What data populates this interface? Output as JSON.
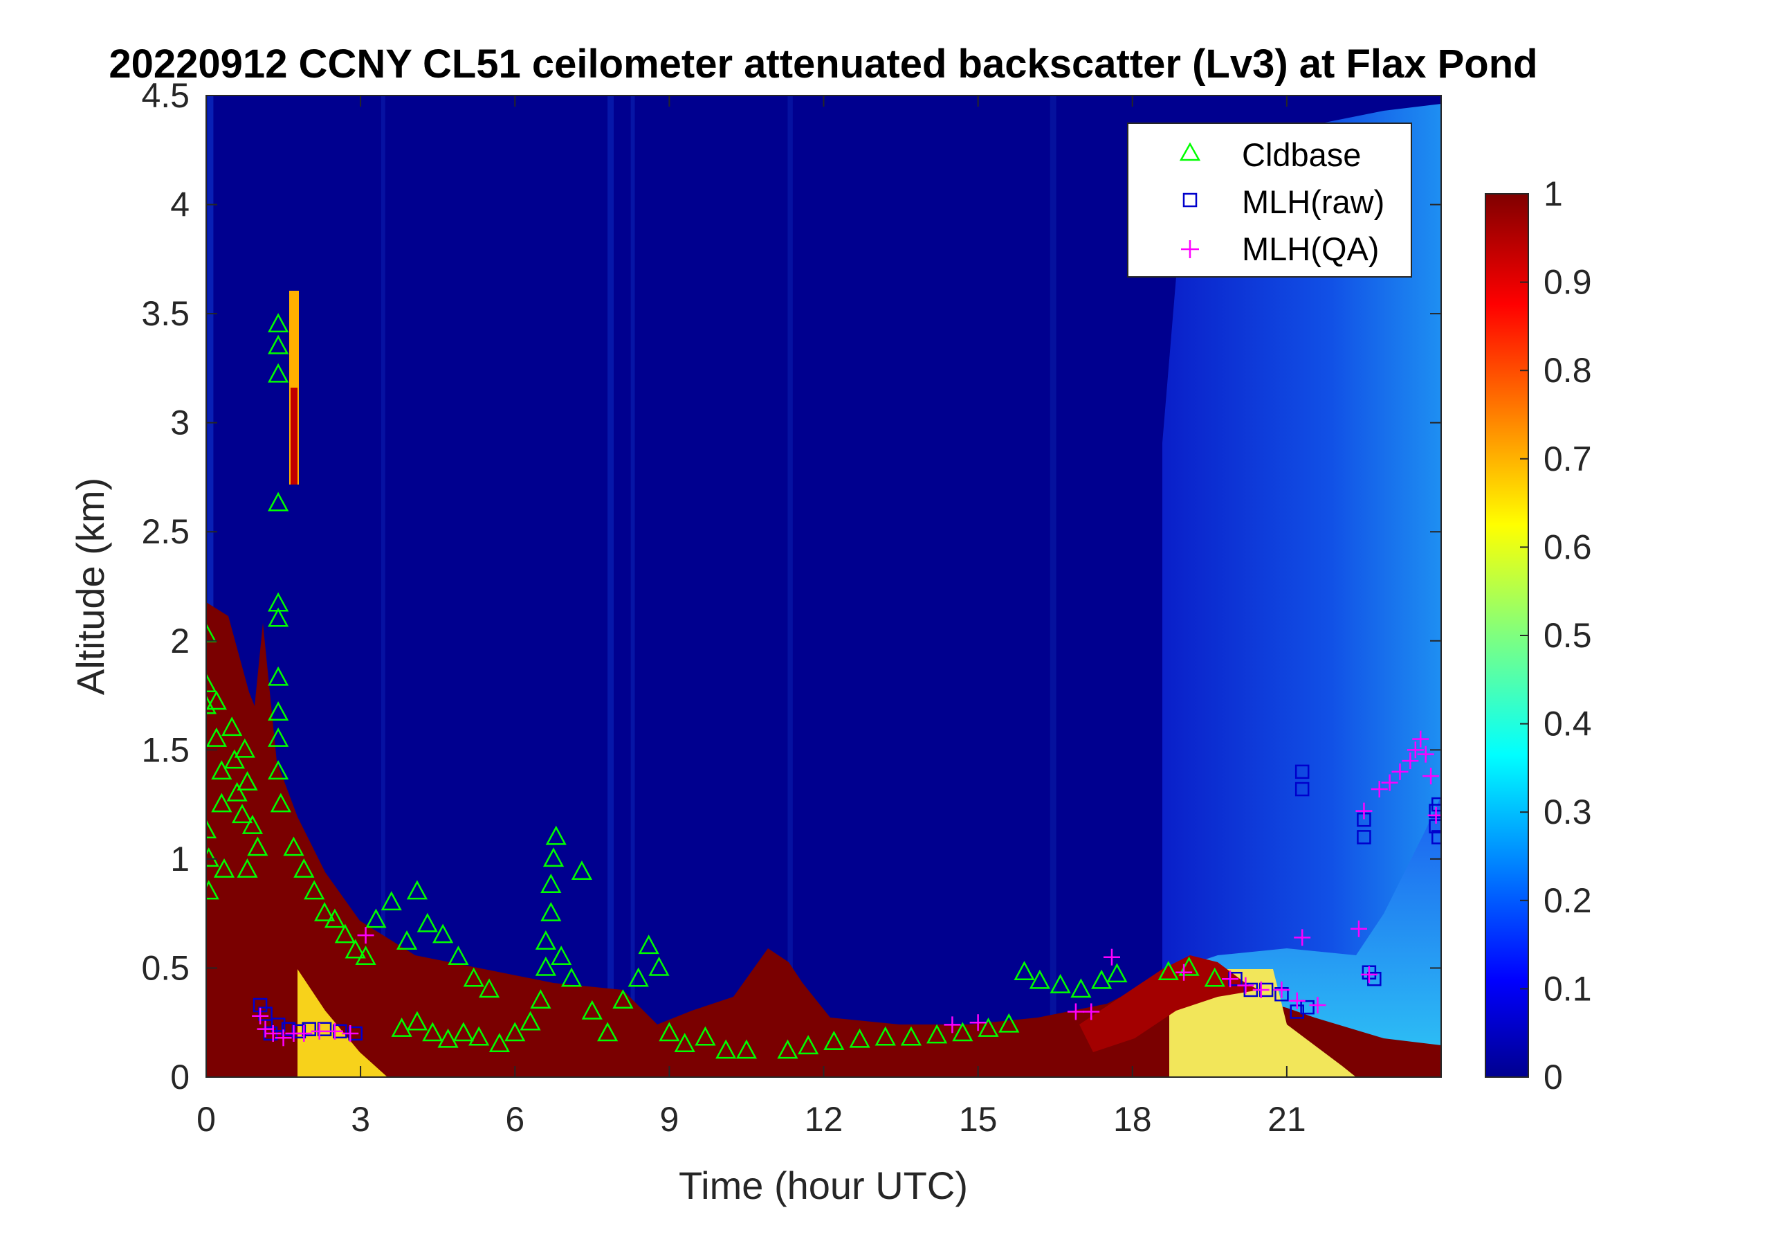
{
  "chart_data": {
    "type": "heatmap",
    "title": "20220912 CCNY CL51 ceilometer attenuated backscatter (Lv3) at Flax Pond",
    "xlabel": "Time (hour UTC)",
    "ylabel": "Altitude (km)",
    "xlim": [
      0,
      24
    ],
    "ylim": [
      0,
      4.5
    ],
    "xticks": [
      "0",
      "3",
      "6",
      "9",
      "12",
      "15",
      "18",
      "21"
    ],
    "yticks": [
      "0",
      "0.5",
      "1",
      "1.5",
      "2",
      "2.5",
      "3",
      "3.5",
      "4",
      "4.5"
    ],
    "colorbar": {
      "range": [
        0,
        1
      ],
      "colormap": "jet",
      "ticks": [
        "0",
        "0.1",
        "0.2",
        "0.3",
        "0.4",
        "0.5",
        "0.6",
        "0.7",
        "0.8",
        "0.9",
        "1"
      ]
    },
    "legend": {
      "position": "top-right"
    },
    "series": [
      {
        "name": "Cldbase",
        "marker": "triangle",
        "color": "#00ff00",
        "points": [
          [
            0.0,
            2.03
          ],
          [
            0.0,
            1.8
          ],
          [
            0.0,
            1.7
          ],
          [
            0.0,
            1.13
          ],
          [
            0.05,
            1.0
          ],
          [
            0.05,
            0.85
          ],
          [
            0.2,
            1.72
          ],
          [
            0.2,
            1.55
          ],
          [
            0.3,
            1.4
          ],
          [
            0.3,
            1.25
          ],
          [
            0.35,
            0.95
          ],
          [
            0.5,
            1.6
          ],
          [
            0.55,
            1.45
          ],
          [
            0.6,
            1.3
          ],
          [
            0.7,
            1.2
          ],
          [
            0.75,
            1.5
          ],
          [
            0.8,
            1.35
          ],
          [
            0.9,
            1.15
          ],
          [
            1.0,
            1.05
          ],
          [
            0.8,
            0.95
          ],
          [
            1.4,
            3.45
          ],
          [
            1.4,
            3.35
          ],
          [
            1.4,
            3.22
          ],
          [
            1.4,
            2.63
          ],
          [
            1.4,
            2.17
          ],
          [
            1.4,
            2.1
          ],
          [
            1.4,
            1.83
          ],
          [
            1.4,
            1.67
          ],
          [
            1.4,
            1.55
          ],
          [
            1.4,
            1.4
          ],
          [
            1.45,
            1.25
          ],
          [
            1.7,
            1.05
          ],
          [
            1.9,
            0.95
          ],
          [
            2.1,
            0.85
          ],
          [
            2.3,
            0.75
          ],
          [
            2.5,
            0.72
          ],
          [
            2.7,
            0.65
          ],
          [
            2.9,
            0.58
          ],
          [
            3.1,
            0.55
          ],
          [
            3.3,
            0.72
          ],
          [
            3.6,
            0.8
          ],
          [
            3.9,
            0.62
          ],
          [
            4.1,
            0.85
          ],
          [
            4.3,
            0.7
          ],
          [
            4.6,
            0.65
          ],
          [
            4.9,
            0.55
          ],
          [
            5.2,
            0.45
          ],
          [
            5.5,
            0.4
          ],
          [
            3.8,
            0.22
          ],
          [
            4.1,
            0.25
          ],
          [
            4.4,
            0.2
          ],
          [
            4.7,
            0.17
          ],
          [
            5.0,
            0.2
          ],
          [
            5.3,
            0.18
          ],
          [
            5.7,
            0.15
          ],
          [
            6.0,
            0.2
          ],
          [
            6.3,
            0.25
          ],
          [
            6.5,
            0.35
          ],
          [
            6.6,
            0.5
          ],
          [
            6.6,
            0.62
          ],
          [
            6.7,
            0.75
          ],
          [
            6.7,
            0.88
          ],
          [
            6.75,
            1.0
          ],
          [
            6.8,
            1.1
          ],
          [
            6.9,
            0.55
          ],
          [
            7.1,
            0.45
          ],
          [
            7.3,
            0.94
          ],
          [
            7.5,
            0.3
          ],
          [
            7.8,
            0.2
          ],
          [
            8.1,
            0.35
          ],
          [
            8.4,
            0.45
          ],
          [
            8.6,
            0.6
          ],
          [
            8.8,
            0.5
          ],
          [
            9.0,
            0.2
          ],
          [
            9.3,
            0.15
          ],
          [
            9.7,
            0.18
          ],
          [
            10.1,
            0.12
          ],
          [
            10.5,
            0.12
          ],
          [
            11.3,
            0.12
          ],
          [
            11.7,
            0.14
          ],
          [
            12.2,
            0.16
          ],
          [
            12.7,
            0.17
          ],
          [
            13.2,
            0.18
          ],
          [
            13.7,
            0.18
          ],
          [
            14.2,
            0.19
          ],
          [
            14.7,
            0.2
          ],
          [
            15.2,
            0.22
          ],
          [
            15.6,
            0.24
          ],
          [
            15.9,
            0.48
          ],
          [
            16.2,
            0.44
          ],
          [
            16.6,
            0.42
          ],
          [
            17.0,
            0.4
          ],
          [
            17.4,
            0.44
          ],
          [
            17.7,
            0.47
          ],
          [
            18.7,
            0.48
          ],
          [
            19.1,
            0.5
          ],
          [
            19.6,
            0.45
          ]
        ]
      },
      {
        "name": "MLH(raw)",
        "marker": "square",
        "color": "#0000cc",
        "points": [
          [
            1.05,
            0.33
          ],
          [
            1.15,
            0.29
          ],
          [
            1.25,
            0.2
          ],
          [
            1.4,
            0.24
          ],
          [
            1.6,
            0.22
          ],
          [
            1.8,
            0.21
          ],
          [
            2.0,
            0.22
          ],
          [
            2.3,
            0.22
          ],
          [
            2.6,
            0.21
          ],
          [
            2.9,
            0.2
          ],
          [
            20.0,
            0.45
          ],
          [
            20.3,
            0.4
          ],
          [
            20.6,
            0.4
          ],
          [
            20.9,
            0.38
          ],
          [
            21.2,
            0.3
          ],
          [
            21.4,
            0.32
          ],
          [
            21.3,
            1.4
          ],
          [
            21.3,
            1.32
          ],
          [
            22.5,
            1.1
          ],
          [
            22.5,
            1.18
          ],
          [
            22.6,
            0.48
          ],
          [
            22.7,
            0.45
          ],
          [
            23.9,
            1.22
          ],
          [
            23.9,
            1.15
          ],
          [
            23.95,
            1.1
          ],
          [
            23.95,
            1.25
          ]
        ]
      },
      {
        "name": "MLH(QA)",
        "marker": "plus",
        "color": "#ff00ff",
        "points": [
          [
            1.05,
            0.28
          ],
          [
            1.15,
            0.22
          ],
          [
            1.3,
            0.2
          ],
          [
            1.5,
            0.18
          ],
          [
            1.7,
            0.2
          ],
          [
            1.9,
            0.2
          ],
          [
            2.2,
            0.21
          ],
          [
            2.5,
            0.21
          ],
          [
            2.8,
            0.2
          ],
          [
            3.1,
            0.65
          ],
          [
            14.5,
            0.24
          ],
          [
            15.0,
            0.25
          ],
          [
            16.9,
            0.3
          ],
          [
            17.2,
            0.3
          ],
          [
            17.6,
            0.55
          ],
          [
            19.0,
            0.48
          ],
          [
            19.9,
            0.45
          ],
          [
            20.2,
            0.42
          ],
          [
            20.5,
            0.4
          ],
          [
            20.9,
            0.4
          ],
          [
            21.2,
            0.35
          ],
          [
            21.3,
            0.64
          ],
          [
            21.6,
            0.33
          ],
          [
            22.4,
            0.68
          ],
          [
            22.5,
            1.22
          ],
          [
            22.6,
            0.47
          ],
          [
            22.8,
            1.32
          ],
          [
            23.0,
            1.35
          ],
          [
            23.2,
            1.4
          ],
          [
            23.4,
            1.45
          ],
          [
            23.5,
            1.5
          ],
          [
            23.6,
            1.55
          ],
          [
            23.7,
            1.48
          ],
          [
            23.8,
            1.38
          ],
          [
            23.9,
            1.2
          ]
        ]
      }
    ]
  }
}
